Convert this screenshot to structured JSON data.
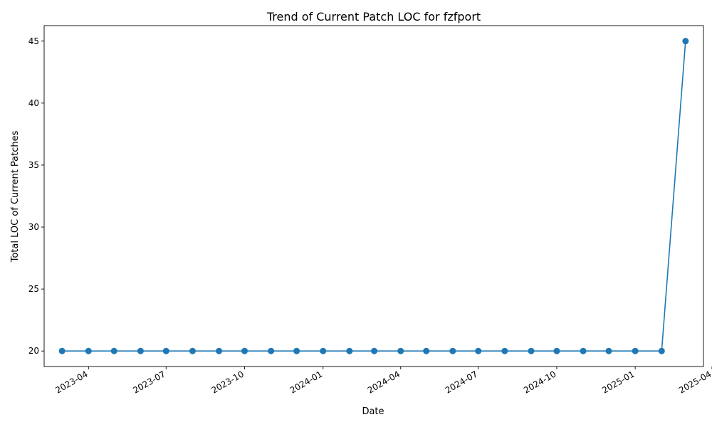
{
  "chart_data": {
    "type": "line",
    "title": "Trend of Current Patch LOC for fzfport",
    "xlabel": "Date",
    "ylabel": "Total LOC of Current Patches",
    "x": [
      "2023-03-01",
      "2023-04-01",
      "2023-05-01",
      "2023-06-01",
      "2023-07-01",
      "2023-08-01",
      "2023-09-01",
      "2023-10-01",
      "2023-11-01",
      "2023-12-01",
      "2024-01-01",
      "2024-02-01",
      "2024-03-01",
      "2024-04-01",
      "2024-05-01",
      "2024-06-01",
      "2024-07-01",
      "2024-08-01",
      "2024-09-01",
      "2024-10-01",
      "2024-11-01",
      "2024-12-01",
      "2025-01-01",
      "2025-02-01",
      "2025-03-01"
    ],
    "series": [
      {
        "values": [
          20,
          20,
          20,
          20,
          20,
          20,
          20,
          20,
          20,
          20,
          20,
          20,
          20,
          20,
          20,
          20,
          20,
          20,
          20,
          20,
          20,
          20,
          20,
          20,
          45
        ]
      }
    ],
    "xlim": [
      "2023-02-08",
      "2025-03-22"
    ],
    "ylim": [
      18.75,
      46.25
    ],
    "x_ticks": [
      "2023-04",
      "2023-07",
      "2023-10",
      "2024-01",
      "2024-04",
      "2024-07",
      "2024-10",
      "2025-01",
      "2025-04"
    ],
    "y_ticks": [
      20,
      25,
      30,
      35,
      40,
      45
    ],
    "grid": false,
    "colors": {
      "line": "#1f77b4",
      "marker": "#1f77b4"
    }
  }
}
